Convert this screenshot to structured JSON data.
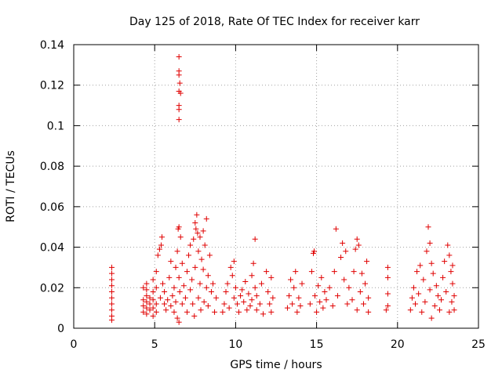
{
  "chart_data": {
    "type": "scatter",
    "title": "Day 125 of 2018, Rate Of TEC Index for receiver karr",
    "xlabel": "GPS time / hours",
    "ylabel": "ROTI / TECUs",
    "xlim": [
      0,
      25
    ],
    "ylim": [
      0,
      0.14
    ],
    "grid": true,
    "marker": "+",
    "color": "#e00000",
    "x_ticks": [
      {
        "value": 0,
        "label": "0"
      },
      {
        "value": 5,
        "label": "5"
      },
      {
        "value": 10,
        "label": "10"
      },
      {
        "value": 15,
        "label": "15"
      },
      {
        "value": 20,
        "label": "20"
      },
      {
        "value": 25,
        "label": "25"
      }
    ],
    "y_ticks": [
      {
        "value": 0,
        "label": "0"
      },
      {
        "value": 0.02,
        "label": "0.02"
      },
      {
        "value": 0.04,
        "label": "0.04"
      },
      {
        "value": 0.06,
        "label": "0.06"
      },
      {
        "value": 0.08,
        "label": "0.08"
      },
      {
        "value": 0.1,
        "label": "0.1"
      },
      {
        "value": 0.12,
        "label": "0.12"
      },
      {
        "value": 0.14,
        "label": "0.14"
      }
    ],
    "points": [
      [
        2.35,
        0.004
      ],
      [
        2.35,
        0.006
      ],
      [
        2.35,
        0.009
      ],
      [
        2.35,
        0.012
      ],
      [
        2.35,
        0.015
      ],
      [
        2.35,
        0.018
      ],
      [
        2.35,
        0.021
      ],
      [
        2.35,
        0.024
      ],
      [
        2.35,
        0.027
      ],
      [
        2.35,
        0.03
      ],
      [
        4.3,
        0.008
      ],
      [
        4.3,
        0.011
      ],
      [
        4.3,
        0.014
      ],
      [
        4.3,
        0.02
      ],
      [
        4.5,
        0.007
      ],
      [
        4.5,
        0.01
      ],
      [
        4.5,
        0.013
      ],
      [
        4.5,
        0.016
      ],
      [
        4.5,
        0.019
      ],
      [
        4.5,
        0.022
      ],
      [
        4.7,
        0.009
      ],
      [
        4.7,
        0.012
      ],
      [
        4.7,
        0.015
      ],
      [
        4.9,
        0.006
      ],
      [
        4.9,
        0.01
      ],
      [
        4.9,
        0.014
      ],
      [
        4.9,
        0.018
      ],
      [
        4.9,
        0.024
      ],
      [
        5.1,
        0.008
      ],
      [
        5.1,
        0.012
      ],
      [
        5.1,
        0.02
      ],
      [
        5.1,
        0.028
      ],
      [
        5.2,
        0.036
      ],
      [
        5.3,
        0.039
      ],
      [
        5.4,
        0.041
      ],
      [
        5.45,
        0.045
      ],
      [
        5.35,
        0.015
      ],
      [
        5.5,
        0.022
      ],
      [
        5.6,
        0.012
      ],
      [
        5.6,
        0.018
      ],
      [
        5.7,
        0.009
      ],
      [
        5.8,
        0.014
      ],
      [
        5.9,
        0.025
      ],
      [
        6.0,
        0.011
      ],
      [
        6.0,
        0.033
      ],
      [
        6.1,
        0.016
      ],
      [
        6.2,
        0.008
      ],
      [
        6.2,
        0.02
      ],
      [
        6.3,
        0.013
      ],
      [
        6.3,
        0.03
      ],
      [
        6.4,
        0.005
      ],
      [
        6.4,
        0.038
      ],
      [
        6.45,
        0.049
      ],
      [
        6.5,
        0.05
      ],
      [
        6.5,
        0.025
      ],
      [
        6.5,
        0.003
      ],
      [
        6.55,
        0.018
      ],
      [
        6.6,
        0.045
      ],
      [
        6.7,
        0.032
      ],
      [
        6.7,
        0.012
      ],
      [
        6.8,
        0.021
      ],
      [
        6.9,
        0.015
      ],
      [
        7.0,
        0.028
      ],
      [
        7.0,
        0.008
      ],
      [
        7.1,
        0.036
      ],
      [
        7.2,
        0.041
      ],
      [
        7.2,
        0.019
      ],
      [
        7.3,
        0.024
      ],
      [
        7.35,
        0.012
      ],
      [
        7.4,
        0.044
      ],
      [
        7.45,
        0.006
      ],
      [
        7.5,
        0.03
      ],
      [
        7.5,
        0.052
      ],
      [
        7.55,
        0.049
      ],
      [
        7.6,
        0.056
      ],
      [
        7.65,
        0.047
      ],
      [
        7.7,
        0.038
      ],
      [
        7.7,
        0.015
      ],
      [
        7.8,
        0.022
      ],
      [
        7.8,
        0.045
      ],
      [
        7.85,
        0.009
      ],
      [
        7.9,
        0.034
      ],
      [
        8.0,
        0.029
      ],
      [
        8.0,
        0.048
      ],
      [
        8.05,
        0.013
      ],
      [
        8.1,
        0.041
      ],
      [
        8.2,
        0.054
      ],
      [
        8.2,
        0.02
      ],
      [
        8.3,
        0.026
      ],
      [
        8.3,
        0.011
      ],
      [
        8.4,
        0.036
      ],
      [
        8.5,
        0.018
      ],
      [
        8.6,
        0.022
      ],
      [
        8.7,
        0.008
      ],
      [
        8.8,
        0.015
      ],
      [
        6.5,
        0.134
      ],
      [
        6.5,
        0.127
      ],
      [
        6.5,
        0.125
      ],
      [
        6.55,
        0.121
      ],
      [
        6.5,
        0.117
      ],
      [
        6.6,
        0.116
      ],
      [
        6.5,
        0.11
      ],
      [
        6.5,
        0.108
      ],
      [
        6.5,
        0.103
      ],
      [
        9.2,
        0.008
      ],
      [
        9.3,
        0.012
      ],
      [
        9.4,
        0.018
      ],
      [
        9.5,
        0.022
      ],
      [
        9.6,
        0.01
      ],
      [
        9.7,
        0.03
      ],
      [
        9.8,
        0.026
      ],
      [
        9.9,
        0.015
      ],
      [
        9.9,
        0.033
      ],
      [
        10.0,
        0.02
      ],
      [
        10.1,
        0.012
      ],
      [
        10.2,
        0.008
      ],
      [
        10.3,
        0.016
      ],
      [
        10.4,
        0.019
      ],
      [
        10.5,
        0.013
      ],
      [
        10.6,
        0.023
      ],
      [
        10.7,
        0.009
      ],
      [
        10.8,
        0.017
      ],
      [
        10.9,
        0.011
      ],
      [
        11.0,
        0.014
      ],
      [
        11.0,
        0.026
      ],
      [
        11.1,
        0.032
      ],
      [
        11.2,
        0.044
      ],
      [
        11.2,
        0.02
      ],
      [
        11.3,
        0.009
      ],
      [
        11.3,
        0.016
      ],
      [
        11.5,
        0.012
      ],
      [
        11.6,
        0.022
      ],
      [
        11.7,
        0.007
      ],
      [
        11.9,
        0.028
      ],
      [
        12.0,
        0.018
      ],
      [
        12.1,
        0.012
      ],
      [
        12.2,
        0.025
      ],
      [
        12.2,
        0.008
      ],
      [
        12.3,
        0.015
      ],
      [
        13.2,
        0.01
      ],
      [
        13.3,
        0.016
      ],
      [
        13.4,
        0.024
      ],
      [
        13.5,
        0.012
      ],
      [
        13.6,
        0.02
      ],
      [
        13.7,
        0.028
      ],
      [
        13.8,
        0.008
      ],
      [
        13.9,
        0.015
      ],
      [
        14.0,
        0.011
      ],
      [
        14.1,
        0.022
      ],
      [
        14.6,
        0.012
      ],
      [
        14.7,
        0.028
      ],
      [
        14.8,
        0.037
      ],
      [
        14.85,
        0.038
      ],
      [
        14.9,
        0.016
      ],
      [
        15.0,
        0.008
      ],
      [
        15.1,
        0.021
      ],
      [
        15.2,
        0.013
      ],
      [
        15.3,
        0.025
      ],
      [
        15.4,
        0.01
      ],
      [
        15.5,
        0.018
      ],
      [
        15.6,
        0.014
      ],
      [
        15.8,
        0.02
      ],
      [
        16.0,
        0.011
      ],
      [
        16.1,
        0.028
      ],
      [
        16.2,
        0.049
      ],
      [
        16.3,
        0.016
      ],
      [
        16.5,
        0.035
      ],
      [
        16.6,
        0.042
      ],
      [
        16.7,
        0.024
      ],
      [
        16.8,
        0.038
      ],
      [
        16.9,
        0.012
      ],
      [
        17.0,
        0.02
      ],
      [
        17.2,
        0.014
      ],
      [
        17.3,
        0.028
      ],
      [
        17.4,
        0.039
      ],
      [
        17.5,
        0.044
      ],
      [
        17.5,
        0.009
      ],
      [
        17.6,
        0.041
      ],
      [
        17.7,
        0.018
      ],
      [
        17.8,
        0.027
      ],
      [
        17.9,
        0.012
      ],
      [
        18.0,
        0.022
      ],
      [
        18.1,
        0.033
      ],
      [
        18.2,
        0.015
      ],
      [
        18.2,
        0.008
      ],
      [
        19.3,
        0.009
      ],
      [
        19.4,
        0.011
      ],
      [
        19.4,
        0.017
      ],
      [
        19.4,
        0.025
      ],
      [
        19.4,
        0.03
      ],
      [
        20.8,
        0.009
      ],
      [
        20.9,
        0.015
      ],
      [
        21.0,
        0.02
      ],
      [
        21.1,
        0.012
      ],
      [
        21.2,
        0.028
      ],
      [
        21.3,
        0.017
      ],
      [
        21.4,
        0.031
      ],
      [
        21.5,
        0.008
      ],
      [
        21.6,
        0.024
      ],
      [
        21.7,
        0.013
      ],
      [
        21.8,
        0.038
      ],
      [
        21.9,
        0.05
      ],
      [
        22.0,
        0.042
      ],
      [
        22.0,
        0.019
      ],
      [
        22.1,
        0.032
      ],
      [
        22.1,
        0.005
      ],
      [
        22.2,
        0.027
      ],
      [
        22.3,
        0.011
      ],
      [
        22.4,
        0.021
      ],
      [
        22.5,
        0.016
      ],
      [
        22.6,
        0.009
      ],
      [
        22.7,
        0.014
      ],
      [
        22.8,
        0.025
      ],
      [
        22.9,
        0.033
      ],
      [
        23.0,
        0.018
      ],
      [
        23.1,
        0.041
      ],
      [
        23.2,
        0.008
      ],
      [
        23.2,
        0.036
      ],
      [
        23.3,
        0.028
      ],
      [
        23.35,
        0.013
      ],
      [
        23.4,
        0.022
      ],
      [
        23.4,
        0.031
      ],
      [
        23.5,
        0.009
      ],
      [
        23.5,
        0.016
      ]
    ]
  }
}
